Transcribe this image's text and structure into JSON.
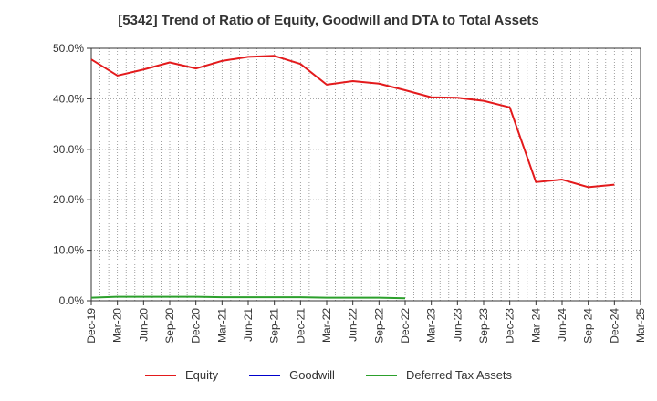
{
  "chart_data": {
    "type": "line",
    "title": "[5342]  Trend of Ratio of Equity, Goodwill and DTA to Total Assets",
    "xlabel": "",
    "ylabel": "",
    "ylim": [
      0,
      50
    ],
    "yticks": [
      "0.0%",
      "10.0%",
      "20.0%",
      "30.0%",
      "40.0%",
      "50.0%"
    ],
    "categories": [
      "Dec-19",
      "Mar-20",
      "Jun-20",
      "Sep-20",
      "Dec-20",
      "Mar-21",
      "Jun-21",
      "Sep-21",
      "Dec-21",
      "Mar-22",
      "Jun-22",
      "Sep-22",
      "Dec-22",
      "Mar-23",
      "Jun-23",
      "Sep-23",
      "Dec-23",
      "Mar-24",
      "Jun-24",
      "Sep-24",
      "Dec-24",
      "Mar-25"
    ],
    "series": [
      {
        "name": "Equity",
        "color": "#e31a1c",
        "values": [
          47.8,
          44.6,
          45.8,
          47.2,
          46.0,
          47.5,
          48.3,
          48.5,
          46.9,
          42.8,
          43.5,
          43.0,
          41.7,
          40.3,
          40.2,
          39.6,
          38.3,
          23.5,
          24.0,
          22.5,
          23.0,
          null
        ]
      },
      {
        "name": "Goodwill",
        "color": "#0000cc",
        "values": [
          null,
          null,
          null,
          null,
          null,
          null,
          null,
          null,
          null,
          null,
          null,
          null,
          null,
          null,
          null,
          null,
          null,
          null,
          null,
          null,
          null,
          null
        ]
      },
      {
        "name": "Deferred Tax Assets",
        "color": "#2ca02c",
        "values": [
          0.6,
          0.8,
          0.8,
          0.8,
          0.8,
          0.7,
          0.7,
          0.7,
          0.7,
          0.6,
          0.6,
          0.6,
          0.5,
          null,
          null,
          null,
          null,
          null,
          null,
          null,
          null,
          null
        ]
      }
    ],
    "legend_position": "bottom",
    "grid": true
  }
}
